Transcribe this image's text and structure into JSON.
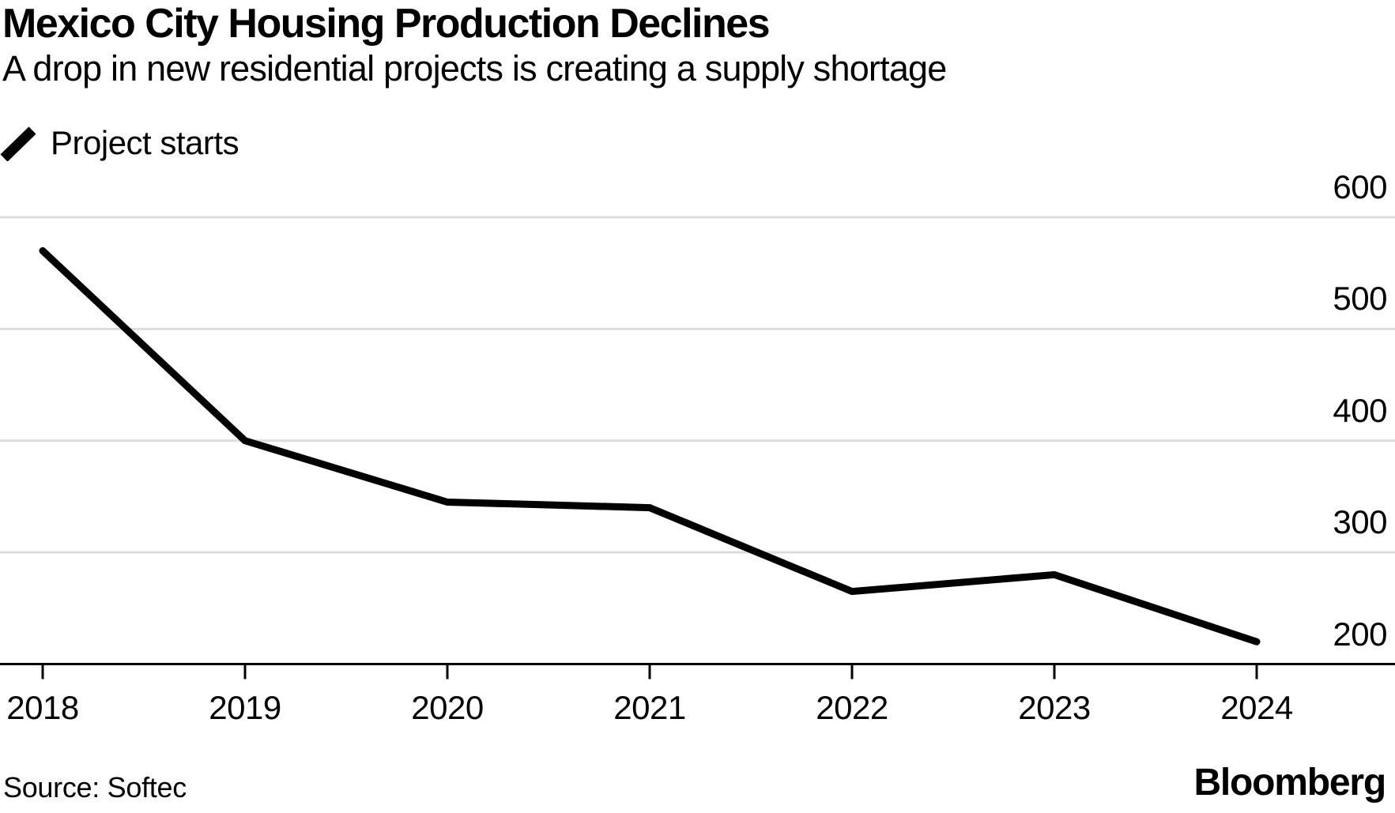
{
  "header": {
    "title": "Mexico City Housing Production Declines",
    "subtitle": "A drop in new residential projects is creating a supply shortage"
  },
  "legend": {
    "series_label": "Project starts",
    "marker_icon": "diagonal-line-segment-icon"
  },
  "footer": {
    "source": "Source: Softec",
    "brand": "Bloomberg"
  },
  "colors": {
    "series_line": "#000000",
    "gridline": "#dcdcdc",
    "axis": "#000000",
    "text": "#000000",
    "background": "#ffffff"
  },
  "chart_data": {
    "type": "line",
    "title": "Mexico City Housing Production Declines",
    "subtitle": "A drop in new residential projects is creating a supply shortage",
    "categories": [
      "2018",
      "2019",
      "2020",
      "2021",
      "2022",
      "2023",
      "2024"
    ],
    "series": [
      {
        "name": "Project starts",
        "values": [
          570,
          400,
          345,
          340,
          265,
          280,
          220
        ]
      }
    ],
    "xlabel": "",
    "ylabel": "",
    "ylim": [
      200,
      650
    ],
    "yticks": [
      600,
      500,
      400,
      300,
      200
    ],
    "grid": "horizontal",
    "legend_position": "top-left",
    "y_axis_side": "right",
    "source": "Softec"
  }
}
